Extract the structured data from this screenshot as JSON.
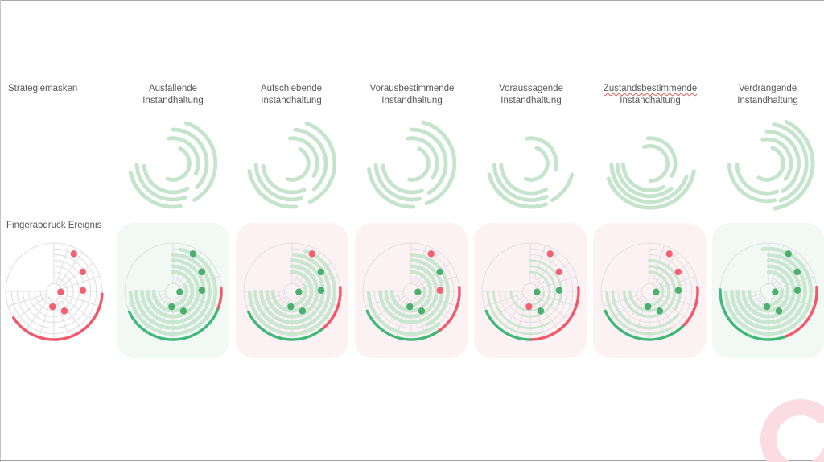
{
  "labels": {
    "strategies_row": "Strategiemasken",
    "fingerprint_row": "Fingerabdruck Ereignis"
  },
  "columns": [
    {
      "title_line1": "Ausfallende",
      "title_line2": "Instandhaltung",
      "spellcheck_underline": false,
      "card_tint": "green"
    },
    {
      "title_line1": "Aufschiebende",
      "title_line2": "Instandhaltung",
      "spellcheck_underline": false,
      "card_tint": "pink"
    },
    {
      "title_line1": "Vorausbestimmende",
      "title_line2": "Instandhaltung",
      "spellcheck_underline": false,
      "card_tint": "pink"
    },
    {
      "title_line1": "Voraussagende",
      "title_line2": "Instandhaltung",
      "spellcheck_underline": false,
      "card_tint": "pink"
    },
    {
      "title_line1": "Zustandsbestimmende",
      "title_line2": "Instandhaltung",
      "spellcheck_underline": true,
      "card_tint": "pink"
    },
    {
      "title_line1": "Verdrängende",
      "title_line2": "Instandhaltung",
      "spellcheck_underline": false,
      "card_tint": "green"
    }
  ],
  "colors": {
    "band_green": "#c9e7d0",
    "glyph_green": "#c4e4cb",
    "dot_green": "#4daf6e",
    "dot_red": "#f56070",
    "arc_green": "#3fb878",
    "arc_red": "#f4566a",
    "grid": "#e0e0e4",
    "card_green": "#f2f8f4",
    "card_pink": "#fdf2f3",
    "deco_pink": "#fadce2",
    "text": "#595959"
  },
  "chart_data": {
    "type": "polar-fingerprint-matrix",
    "angle_convention": "degrees clockwise from top (north); grid spans 0-270, upper-left quadrant empty",
    "radius_convention": "fraction of outer circle radius",
    "grid": {
      "rings": [
        0.16,
        0.28,
        0.4,
        0.52,
        0.64,
        0.76,
        0.88,
        1.0
      ],
      "spoke_step_deg": 18,
      "spoke_span": [
        0,
        270
      ]
    },
    "event_points": [
      {
        "angle": 28,
        "radius": 0.88
      },
      {
        "angle": 56,
        "radius": 0.72
      },
      {
        "angle": 88,
        "radius": 0.6
      },
      {
        "angle": 95,
        "radius": 0.14
      },
      {
        "angle": 152,
        "radius": 0.46
      },
      {
        "angle": 185,
        "radius": 0.32
      }
    ],
    "charts": [
      {
        "name": "Fingerabdruck Ereignis",
        "band_width": 0,
        "bands": [],
        "points": [
          "red",
          "red",
          "red",
          "red",
          "red",
          "red"
        ],
        "outer_arcs": [
          [
            93,
            237,
            "red"
          ]
        ]
      },
      {
        "name": "Ausfallende Instandhaltung",
        "band_width": 4.6,
        "bands": [
          [
            0.28,
            65,
            200
          ],
          [
            0.4,
            0,
            270
          ],
          [
            0.52,
            0,
            270
          ],
          [
            0.64,
            0,
            270
          ],
          [
            0.76,
            0,
            270
          ],
          [
            0.88,
            10,
            268
          ]
        ],
        "points": [
          "green",
          "green",
          "green",
          "green",
          "green",
          "green"
        ],
        "outer_arcs": [
          [
            110,
            245,
            "green"
          ],
          [
            86,
            110,
            "red"
          ]
        ]
      },
      {
        "name": "Aufschiebende Instandhaltung",
        "band_width": 4.6,
        "bands": [
          [
            0.28,
            65,
            200
          ],
          [
            0.4,
            0,
            270
          ],
          [
            0.52,
            0,
            270
          ],
          [
            0.64,
            0,
            270
          ],
          [
            0.76,
            3,
            270
          ],
          [
            0.88,
            18,
            268
          ]
        ],
        "points": [
          "red",
          "green",
          "green",
          "green",
          "green",
          "green"
        ],
        "outer_arcs": [
          [
            140,
            245,
            "green"
          ],
          [
            85,
            140,
            "red"
          ]
        ]
      },
      {
        "name": "Vorausbestimmende Instandhaltung",
        "band_width": 4.6,
        "bands": [
          [
            0.28,
            80,
            200
          ],
          [
            0.4,
            0,
            270
          ],
          [
            0.52,
            0,
            270
          ],
          [
            0.64,
            0,
            270
          ],
          [
            0.76,
            0,
            155
          ],
          [
            0.88,
            140,
            268
          ]
        ],
        "points": [
          "red",
          "green",
          "red",
          "green",
          "green",
          "green"
        ],
        "outer_arcs": [
          [
            143,
            246,
            "green"
          ],
          [
            85,
            143,
            "red"
          ]
        ]
      },
      {
        "name": "Voraussagende Instandhaltung",
        "band_width": 2.8,
        "bands": [
          [
            0.28,
            95,
            190
          ],
          [
            0.4,
            0,
            270
          ],
          [
            0.52,
            0,
            200
          ],
          [
            0.64,
            0,
            115
          ],
          [
            0.76,
            150,
            270
          ],
          [
            0.88,
            165,
            268
          ]
        ],
        "points": [
          "red",
          "red",
          "green",
          "green",
          "green",
          "red"
        ],
        "outer_arcs": [
          [
            178,
            246,
            "green"
          ],
          [
            85,
            178,
            "red"
          ]
        ]
      },
      {
        "name": "Zustandsbestimmende Instandhaltung",
        "band_width": 3.6,
        "bands": [
          [
            0.28,
            60,
            200
          ],
          [
            0.4,
            0,
            270
          ],
          [
            0.52,
            0,
            270
          ],
          [
            0.64,
            0,
            125
          ],
          [
            0.76,
            130,
            270
          ],
          [
            0.88,
            150,
            268
          ]
        ],
        "points": [
          "red",
          "red",
          "green",
          "green",
          "green",
          "green"
        ],
        "outer_arcs": [
          [
            134,
            246,
            "green"
          ],
          [
            85,
            134,
            "red"
          ]
        ]
      },
      {
        "name": "Verdrängende Instandhaltung",
        "band_width": 4.6,
        "bands": [
          [
            0.28,
            85,
            200
          ],
          [
            0.4,
            0,
            270
          ],
          [
            0.52,
            0,
            270
          ],
          [
            0.64,
            0,
            270
          ],
          [
            0.76,
            0,
            270
          ],
          [
            0.88,
            352,
            268
          ]
        ],
        "points": [
          "green",
          "green",
          "green",
          "green",
          "green",
          "green"
        ],
        "outer_arcs": [
          [
            158,
            272,
            "green"
          ],
          [
            85,
            158,
            "red"
          ]
        ]
      }
    ],
    "spiral_glyphs": [
      {
        "name": "Ausfallende",
        "arcs": [
          [
            0.34,
            25,
            200
          ],
          [
            0.52,
            350,
            115
          ],
          [
            0.7,
            0,
            135
          ],
          [
            0.88,
            18,
            150
          ],
          [
            0.6,
            150,
            265
          ],
          [
            0.75,
            160,
            268
          ],
          [
            0.9,
            170,
            258
          ]
        ]
      },
      {
        "name": "Aufschiebende",
        "arcs": [
          [
            0.34,
            30,
            195
          ],
          [
            0.52,
            355,
            120
          ],
          [
            0.7,
            5,
            140
          ],
          [
            0.88,
            20,
            155
          ],
          [
            0.6,
            155,
            265
          ],
          [
            0.75,
            165,
            268
          ],
          [
            0.9,
            175,
            260
          ]
        ]
      },
      {
        "name": "Vorausbestimmende",
        "arcs": [
          [
            0.34,
            25,
            190
          ],
          [
            0.52,
            350,
            125
          ],
          [
            0.7,
            0,
            150
          ],
          [
            0.88,
            15,
            160
          ],
          [
            0.6,
            160,
            265
          ],
          [
            0.75,
            168,
            268
          ],
          [
            0.9,
            178,
            262
          ]
        ]
      },
      {
        "name": "Voraussagende",
        "arcs": [
          [
            0.34,
            20,
            200
          ],
          [
            0.52,
            350,
            105
          ],
          [
            0.88,
            105,
            150
          ],
          [
            0.62,
            150,
            268
          ],
          [
            0.76,
            155,
            268
          ],
          [
            0.9,
            160,
            255
          ]
        ]
      },
      {
        "name": "Zustandsbestimmende",
        "arcs": [
          [
            0.36,
            340,
            180
          ],
          [
            0.52,
            355,
            120
          ],
          [
            0.56,
            150,
            268
          ],
          [
            0.68,
            140,
            268
          ],
          [
            0.8,
            110,
            268
          ],
          [
            0.92,
            100,
            250
          ]
        ]
      },
      {
        "name": "Verdrängende",
        "arcs": [
          [
            0.34,
            20,
            210
          ],
          [
            0.5,
            350,
            130
          ],
          [
            0.66,
            0,
            150
          ],
          [
            0.82,
            10,
            160
          ],
          [
            0.95,
            25,
            170
          ],
          [
            0.62,
            160,
            268
          ],
          [
            0.78,
            168,
            268
          ]
        ]
      }
    ],
    "decoration": {
      "shape": "hand-drawn ring, opening to the right, clipped at bottom-right corner"
    }
  }
}
